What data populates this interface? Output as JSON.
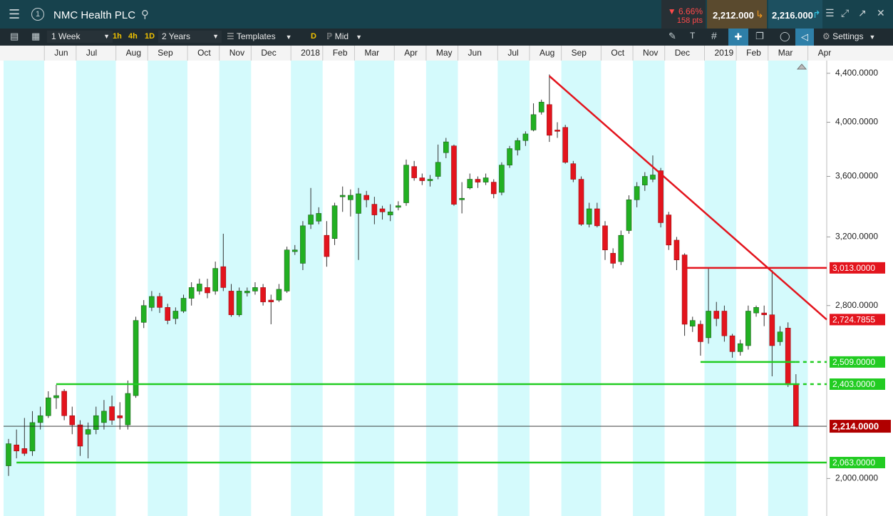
{
  "toolbar": {
    "instrument": "NMC Health PLC",
    "change_pct": "6.66%",
    "change_pts": "158 pts",
    "sell": "2,212.000",
    "buy": "2,216.000",
    "interval": "1 Week",
    "quick_intervals": [
      "1h",
      "4h",
      "1D"
    ],
    "range": "2 Years",
    "templates": "Templates",
    "d": "D",
    "price_mode": "Mid",
    "settings": "Settings"
  },
  "chart_data": {
    "type": "candlestick",
    "log_scale": true,
    "up_color": "#22b022",
    "down_color": "#e3141d",
    "categories": [
      null,
      null,
      null,
      null,
      null,
      "Jun",
      null,
      null,
      null,
      "Jul",
      null,
      null,
      null,
      null,
      "Aug",
      null,
      null,
      null,
      "Sep",
      null,
      null,
      null,
      null,
      "Oct",
      null,
      null,
      null,
      "Nov",
      null,
      null,
      null,
      "Dec",
      null,
      null,
      null,
      null,
      "2018",
      null,
      null,
      null,
      "Feb",
      null,
      null,
      null,
      "Mar",
      null,
      null,
      null,
      null,
      "Apr",
      null,
      null,
      null,
      "May",
      null,
      null,
      null,
      "Jun",
      null,
      null,
      null,
      null,
      "Jul",
      null,
      null,
      null,
      "Aug",
      null,
      null,
      null,
      "Sep",
      null,
      null,
      null,
      null,
      "Oct",
      null,
      null,
      null,
      "Nov",
      null,
      null,
      null,
      "Dec",
      null,
      null,
      null,
      null,
      "2019",
      null,
      null,
      null,
      "Feb",
      null,
      null,
      null,
      "Mar",
      null,
      null,
      null,
      null,
      "Apr",
      null,
      null
    ],
    "open": [
      2050,
      2135,
      2120,
      2110,
      2230,
      2260,
      2340,
      2370,
      2260,
      2220,
      2180,
      2200,
      2230,
      2300,
      2260,
      2220,
      2350,
      2710,
      2790,
      2850,
      2790,
      2730,
      2770,
      2840,
      2880,
      2900,
      2880,
      3020,
      2880,
      2750,
      2870,
      2880,
      2900,
      2830,
      2830,
      2880,
      3110,
      3040,
      3280,
      3300,
      3210,
      3190,
      3460,
      3440,
      3350,
      3470,
      3410,
      3380,
      3340,
      3390,
      3420,
      3670,
      3590,
      3570,
      3600,
      3770,
      3820,
      3440,
      3520,
      3580,
      3560,
      3560,
      3490,
      3680,
      3790,
      3860,
      3940,
      4080,
      4140,
      3940,
      3960,
      3690,
      3580,
      3280,
      3380,
      3270,
      3100,
      3050,
      3240,
      3440,
      3540,
      3580,
      3640,
      3340,
      3180,
      3090,
      2690,
      2700,
      2630,
      2770,
      2770,
      2640,
      2560,
      2590,
      2760,
      2760,
      2750,
      2610,
      2680,
      2400,
      null,
      null,
      null,
      null
    ],
    "high": [
      2160,
      2200,
      2250,
      2280,
      2300,
      2370,
      2400,
      2380,
      2300,
      2240,
      2230,
      2300,
      2330,
      2350,
      2320,
      2420,
      2740,
      2830,
      2880,
      2870,
      2810,
      2790,
      2860,
      2930,
      2950,
      2950,
      3050,
      3220,
      2920,
      2900,
      2900,
      2930,
      2920,
      2860,
      2920,
      3140,
      3150,
      3300,
      3520,
      3390,
      3300,
      3420,
      3530,
      3510,
      3520,
      3500,
      3460,
      3400,
      3410,
      3430,
      3720,
      3710,
      3620,
      3610,
      3830,
      3880,
      3830,
      3560,
      3620,
      3600,
      3620,
      3580,
      3700,
      3820,
      3880,
      3930,
      4150,
      4180,
      4390,
      4000,
      3980,
      3710,
      3600,
      3420,
      3420,
      3300,
      3130,
      3240,
      3470,
      3560,
      3630,
      3750,
      3660,
      3360,
      3200,
      3100,
      2740,
      2720,
      3010,
      2820,
      2800,
      2650,
      2620,
      2800,
      2800,
      2800,
      3000,
      2690,
      2710,
      2450,
      null,
      null,
      null,
      null
    ],
    "low": [
      2010,
      2080,
      2090,
      2090,
      2200,
      2250,
      2290,
      2240,
      2180,
      2090,
      2080,
      2180,
      2200,
      2220,
      2200,
      2200,
      2340,
      2680,
      2770,
      2760,
      2700,
      2700,
      2760,
      2800,
      2860,
      2840,
      2860,
      2880,
      2740,
      2740,
      2850,
      2860,
      2800,
      2700,
      2820,
      2870,
      3090,
      3000,
      3250,
      3280,
      3020,
      3150,
      3360,
      3330,
      3060,
      3390,
      3280,
      3310,
      3300,
      3370,
      3400,
      3570,
      3540,
      3530,
      3580,
      3730,
      3400,
      3350,
      3510,
      3520,
      3540,
      3450,
      3470,
      3660,
      3750,
      3820,
      3930,
      4060,
      3850,
      3880,
      3690,
      3560,
      3270,
      3260,
      3260,
      3060,
      3010,
      3030,
      3220,
      3390,
      3500,
      3560,
      3260,
      3120,
      3000,
      2640,
      2660,
      2540,
      2600,
      2690,
      2610,
      2530,
      2540,
      2570,
      2740,
      2690,
      2440,
      2590,
      2390,
      2214,
      null,
      null,
      null,
      null
    ],
    "close": [
      2140,
      2110,
      2100,
      2230,
      2260,
      2340,
      2350,
      2260,
      2220,
      2130,
      2200,
      2260,
      2280,
      2240,
      2250,
      2360,
      2720,
      2800,
      2850,
      2790,
      2720,
      2770,
      2840,
      2900,
      2920,
      2870,
      3010,
      2900,
      2750,
      2880,
      2880,
      2900,
      2820,
      2820,
      2890,
      3120,
      3120,
      3270,
      3340,
      3350,
      3080,
      3400,
      3470,
      3470,
      3480,
      3440,
      3340,
      3360,
      3360,
      3400,
      3680,
      3590,
      3570,
      3580,
      3700,
      3850,
      3410,
      3450,
      3580,
      3560,
      3590,
      3480,
      3680,
      3800,
      3860,
      3910,
      4060,
      4160,
      3900,
      3930,
      3700,
      3580,
      3280,
      3380,
      3270,
      3120,
      3040,
      3210,
      3440,
      3530,
      3600,
      3610,
      3290,
      3150,
      3060,
      2700,
      2720,
      2610,
      2770,
      2730,
      2640,
      2560,
      2600,
      2770,
      2790,
      2750,
      2590,
      2660,
      2400,
      2214,
      null,
      null,
      null,
      null
    ],
    "ylim": [
      1880,
      4510
    ],
    "yticks": [
      {
        "value": 2000,
        "label": "2,000.0000"
      },
      {
        "value": 2800,
        "label": "2,800.0000"
      },
      {
        "value": 3200,
        "label": "3,200.0000"
      },
      {
        "value": 3600,
        "label": "3,600.0000"
      },
      {
        "value": 4000,
        "label": "4,000.0000"
      },
      {
        "value": 4400,
        "label": "4,400.0000"
      }
    ],
    "levels": [
      {
        "value": 3013,
        "label": "3,013.0000",
        "color": "#e3141d",
        "start": 85,
        "dashed_after_data": false
      },
      {
        "value": 2509,
        "label": "2,509.0000",
        "color": "#22cc22",
        "start": 87,
        "dashed_after_data": true
      },
      {
        "value": 2403,
        "label": "2,403.0000",
        "color": "#22cc22",
        "start": 6,
        "dashed_after_data": true
      },
      {
        "value": 2063,
        "label": "2,063.0000",
        "color": "#22cc22",
        "start": 1,
        "dashed_after_data": false
      }
    ],
    "trendline": {
      "start": 68,
      "start_value": 4376,
      "end_value": 2724.7855,
      "label": "2,724.7855",
      "color": "#e3141d"
    },
    "last_price": {
      "value": 2214,
      "label": "2,214.0000",
      "color": "#b00000"
    }
  }
}
